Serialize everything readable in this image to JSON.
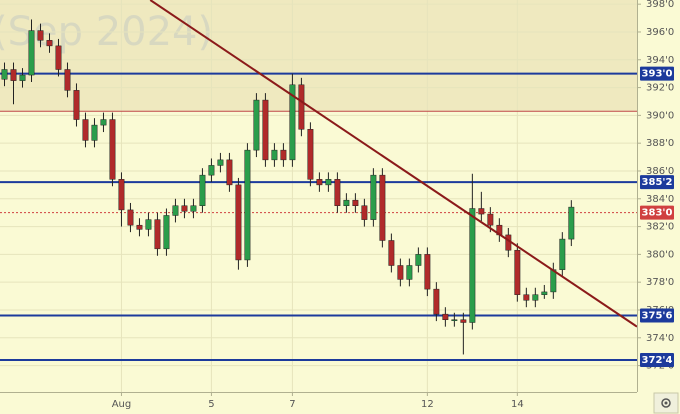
{
  "chart_data": {
    "type": "candlestick",
    "watermark": "(Sep 2024)",
    "up_color": "#2a9d4b",
    "down_color": "#b02a2a",
    "grid": true,
    "xlim": [
      -0.5,
      70.3
    ],
    "xticks": [
      {
        "value": 13,
        "label": "Aug"
      },
      {
        "value": 23,
        "label": "5"
      },
      {
        "value": 32,
        "label": "7"
      },
      {
        "value": 47,
        "label": "12"
      },
      {
        "value": 57,
        "label": "14"
      }
    ],
    "ylim": [
      370.1,
      398.3
    ],
    "yticks": [
      {
        "value": 398,
        "label": "398'0"
      },
      {
        "value": 396,
        "label": "396'0"
      },
      {
        "value": 394,
        "label": "394'0"
      },
      {
        "value": 392,
        "label": "392'0"
      },
      {
        "value": 390,
        "label": "390'0"
      },
      {
        "value": 388,
        "label": "388'0"
      },
      {
        "value": 386,
        "label": "386'0"
      },
      {
        "value": 384,
        "label": "384'0"
      },
      {
        "value": 382,
        "label": "382'0"
      },
      {
        "value": 380,
        "label": "380'0"
      },
      {
        "value": 378,
        "label": "378'0"
      },
      {
        "value": 376,
        "label": "376'0"
      },
      {
        "value": 374,
        "label": "374'0"
      },
      {
        "value": 372,
        "label": "372'0"
      }
    ],
    "open": [
      392.6,
      393.3,
      392.5,
      392.9,
      396.1,
      395.4,
      395.0,
      393.3,
      391.8,
      389.7,
      388.2,
      389.3,
      389.7,
      385.4,
      383.2,
      382.1,
      381.8,
      382.5,
      380.4,
      382.8,
      383.5,
      383.1,
      383.5,
      385.7,
      386.4,
      386.8,
      385.0,
      379.6,
      387.5,
      391.1,
      386.8,
      387.5,
      386.8,
      392.2,
      389.0,
      385.4,
      385.0,
      385.4,
      383.5,
      383.9,
      383.5,
      382.5,
      385.7,
      381.0,
      379.2,
      378.2,
      379.2,
      380.0,
      377.5,
      375.7,
      375.3,
      375.3,
      375.1,
      383.3,
      382.9,
      382.1,
      381.4,
      380.3,
      377.1,
      376.7,
      377.1,
      377.3,
      378.9,
      381.1
    ],
    "high": [
      393.8,
      393.8,
      393.4,
      396.9,
      396.6,
      395.9,
      395.5,
      393.8,
      392.3,
      390.2,
      389.8,
      390.2,
      390.2,
      385.9,
      383.7,
      382.6,
      383.0,
      383.0,
      383.3,
      384.0,
      384.0,
      384.0,
      386.2,
      386.9,
      387.3,
      387.3,
      385.5,
      388.0,
      391.6,
      391.6,
      388.0,
      388.0,
      393.0,
      392.7,
      389.5,
      385.9,
      385.9,
      385.9,
      384.4,
      384.4,
      384.0,
      386.2,
      386.2,
      381.5,
      379.7,
      379.7,
      380.5,
      380.5,
      378.0,
      376.2,
      375.8,
      375.8,
      385.8,
      384.5,
      383.4,
      382.6,
      381.9,
      380.8,
      377.6,
      377.6,
      377.8,
      379.4,
      381.6,
      383.9
    ],
    "low": [
      392.1,
      390.8,
      392.0,
      392.4,
      394.9,
      394.5,
      392.8,
      391.3,
      389.2,
      387.7,
      387.7,
      388.8,
      384.9,
      382.0,
      381.6,
      381.3,
      381.3,
      379.9,
      379.9,
      382.3,
      382.6,
      382.6,
      383.0,
      385.2,
      385.9,
      384.5,
      378.9,
      379.1,
      387.0,
      386.3,
      386.3,
      386.3,
      386.3,
      388.5,
      384.9,
      384.5,
      384.5,
      383.0,
      383.0,
      383.0,
      382.0,
      382.0,
      380.5,
      378.7,
      377.7,
      377.7,
      378.7,
      377.0,
      375.2,
      374.8,
      374.8,
      372.8,
      374.6,
      382.4,
      381.6,
      380.9,
      379.8,
      376.6,
      376.2,
      376.2,
      376.8,
      376.8,
      378.4,
      380.6
    ],
    "close": [
      393.3,
      392.5,
      392.9,
      396.1,
      395.4,
      395.0,
      393.3,
      391.8,
      389.7,
      388.2,
      389.3,
      389.7,
      385.4,
      383.2,
      382.1,
      381.8,
      382.5,
      380.4,
      382.8,
      383.5,
      383.1,
      383.5,
      385.7,
      386.4,
      386.8,
      385.0,
      379.6,
      387.5,
      391.1,
      386.8,
      387.5,
      386.8,
      392.2,
      389.0,
      385.4,
      385.0,
      385.4,
      383.5,
      383.9,
      383.5,
      382.5,
      385.7,
      381.0,
      379.2,
      378.2,
      379.2,
      380.0,
      377.5,
      375.7,
      375.3,
      375.3,
      375.1,
      383.3,
      382.9,
      382.1,
      381.4,
      380.3,
      377.1,
      376.7,
      377.1,
      377.3,
      378.9,
      381.1,
      383.4
    ],
    "hlines": [
      {
        "value": 393.0,
        "label": "393'0",
        "color": "#1c3a9c"
      },
      {
        "value": 385.2,
        "label": "385'2",
        "color": "#1c3a9c"
      },
      {
        "value": 375.6,
        "label": "375'6",
        "color": "#1c3a9c"
      },
      {
        "value": 372.4,
        "label": "372'4",
        "color": "#1c3a9c"
      },
      {
        "value": 383.0,
        "label": "383'0",
        "color": "#d04040",
        "dotted": true
      },
      {
        "value": 390.3,
        "color": "#c04848",
        "shade_above": true
      }
    ],
    "trendline": {
      "x": [
        16.2,
        70.3
      ],
      "y": [
        398.3,
        374.8
      ],
      "color": "#8b1a1a"
    }
  }
}
